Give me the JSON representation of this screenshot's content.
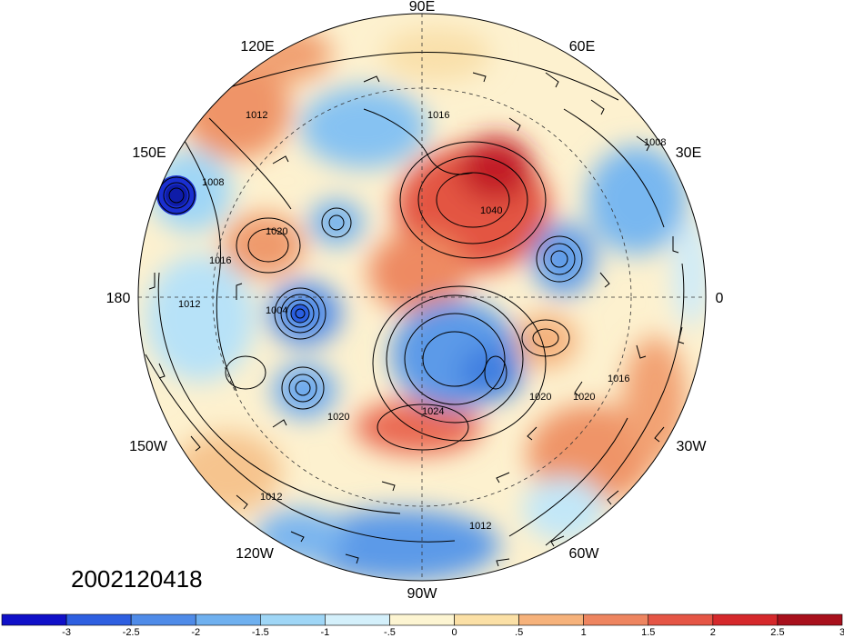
{
  "map": {
    "projection": "polar-stereographic-north",
    "center_longitude_on_right": "0",
    "longitude_labels": {
      "top": "90E",
      "top_left": "120E",
      "top_right": "60E",
      "upper_left": "150E",
      "upper_right": "30E",
      "left": "180",
      "right": "0",
      "lower_left": "150W",
      "lower_right": "30W",
      "bottom_left": "120W",
      "bottom_right": "60W",
      "bottom": "90W"
    },
    "contour_labels": [
      "1008",
      "1016",
      "1012",
      "1020",
      "1004",
      "1040",
      "1024",
      "1008",
      "1012",
      "1016",
      "1020",
      "1012",
      "1016",
      "1020",
      "1020",
      "1012"
    ],
    "contour_interval_hpa": 4
  },
  "timestamp": "2002120418",
  "colorbar": {
    "tick_labels": [
      "-3",
      "-2.5",
      "-2",
      "-1.5",
      "-1",
      "-.5",
      "0",
      ".5",
      "1",
      "1.5",
      "2",
      "2.5",
      "3"
    ],
    "colors": [
      "#1010c8",
      "#2e5fe0",
      "#4f8be8",
      "#6fb0ef",
      "#9fd6f6",
      "#d4f0fb",
      "#fdf5d2",
      "#fbe0a6",
      "#f6b27b",
      "#ee8560",
      "#e55545",
      "#d5282b",
      "#a8101c"
    ]
  }
}
